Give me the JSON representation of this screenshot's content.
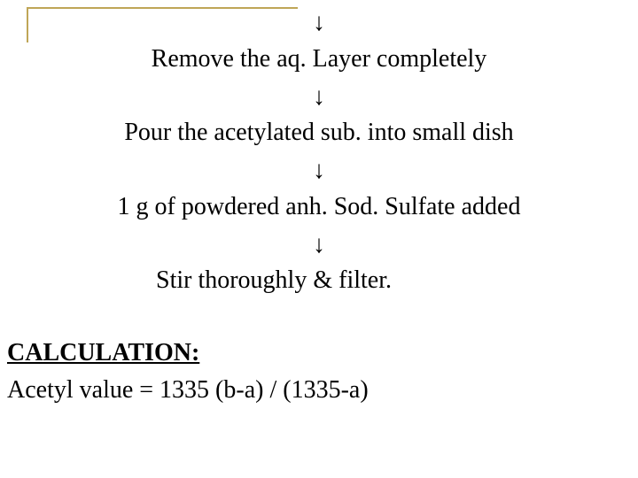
{
  "steps": {
    "arrow": "↓",
    "step1": "Remove the aq. Layer completely",
    "step2": "Pour the acetylated sub. into small dish",
    "step3": "1 g of powdered anh. Sod. Sulfate added",
    "step4": "Stir thoroughly & filter."
  },
  "calculation": {
    "heading": "CALCULATION:",
    "formula": "Acetyl value = 1335 (b-a) / (1335-a)"
  },
  "styling": {
    "background_color": "#ffffff",
    "text_color": "#000000",
    "border_color": "#bfa657",
    "font_family": "Times New Roman",
    "font_size_pt": 21,
    "border_top_width": 306,
    "border_left_height": 40,
    "border_thickness": 2
  }
}
